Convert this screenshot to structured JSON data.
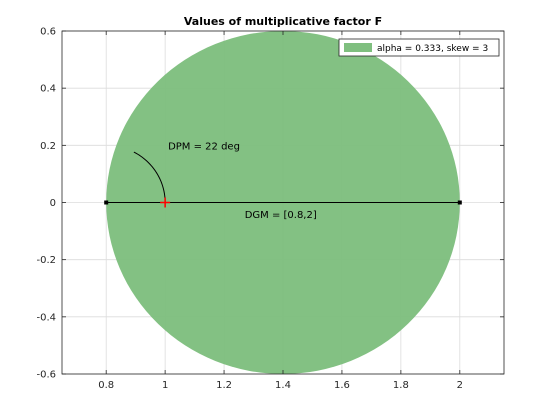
{
  "chart_data": {
    "type": "scatter",
    "title": "Values of multiplicative factor F",
    "xlabel": "",
    "ylabel": "",
    "xlim": [
      0.65,
      2.15
    ],
    "ylim": [
      -0.6,
      0.6
    ],
    "xticks": [
      0.8,
      1,
      1.2,
      1.4,
      1.6,
      1.8,
      2
    ],
    "xtick_labels": [
      "0.8",
      "1",
      "1.2",
      "1.4",
      "1.6",
      "1.8",
      "2"
    ],
    "yticks": [
      -0.6,
      -0.4,
      -0.2,
      0,
      0.2,
      0.4,
      0.6
    ],
    "ytick_labels": [
      "-0.6",
      "-0.4",
      "-0.2",
      "0",
      "0.2",
      "0.4",
      "0.6"
    ],
    "grid": true,
    "legend_position": "top-right",
    "region": {
      "name": "alpha = 0.333, skew = 3",
      "color": "#7fbf7f",
      "center": [
        1.4,
        0
      ],
      "radius": 0.6
    },
    "dgm_line": {
      "x": [
        0.8,
        2
      ],
      "y": [
        0,
        0
      ]
    },
    "dpm_arc": {
      "center": [
        0.8,
        0
      ],
      "radius": 0.2,
      "angle_from_deg": 0,
      "angle_to_deg": 62
    },
    "marker": {
      "x": 1,
      "y": 0,
      "symbol": "+",
      "color": "#ff0000"
    },
    "annotations": [
      {
        "text": "DPM = 22 deg",
        "x": 1.01,
        "y": 0.2
      },
      {
        "text": "DGM = [0.8,2]",
        "x": 1.27,
        "y": -0.04
      }
    ]
  }
}
